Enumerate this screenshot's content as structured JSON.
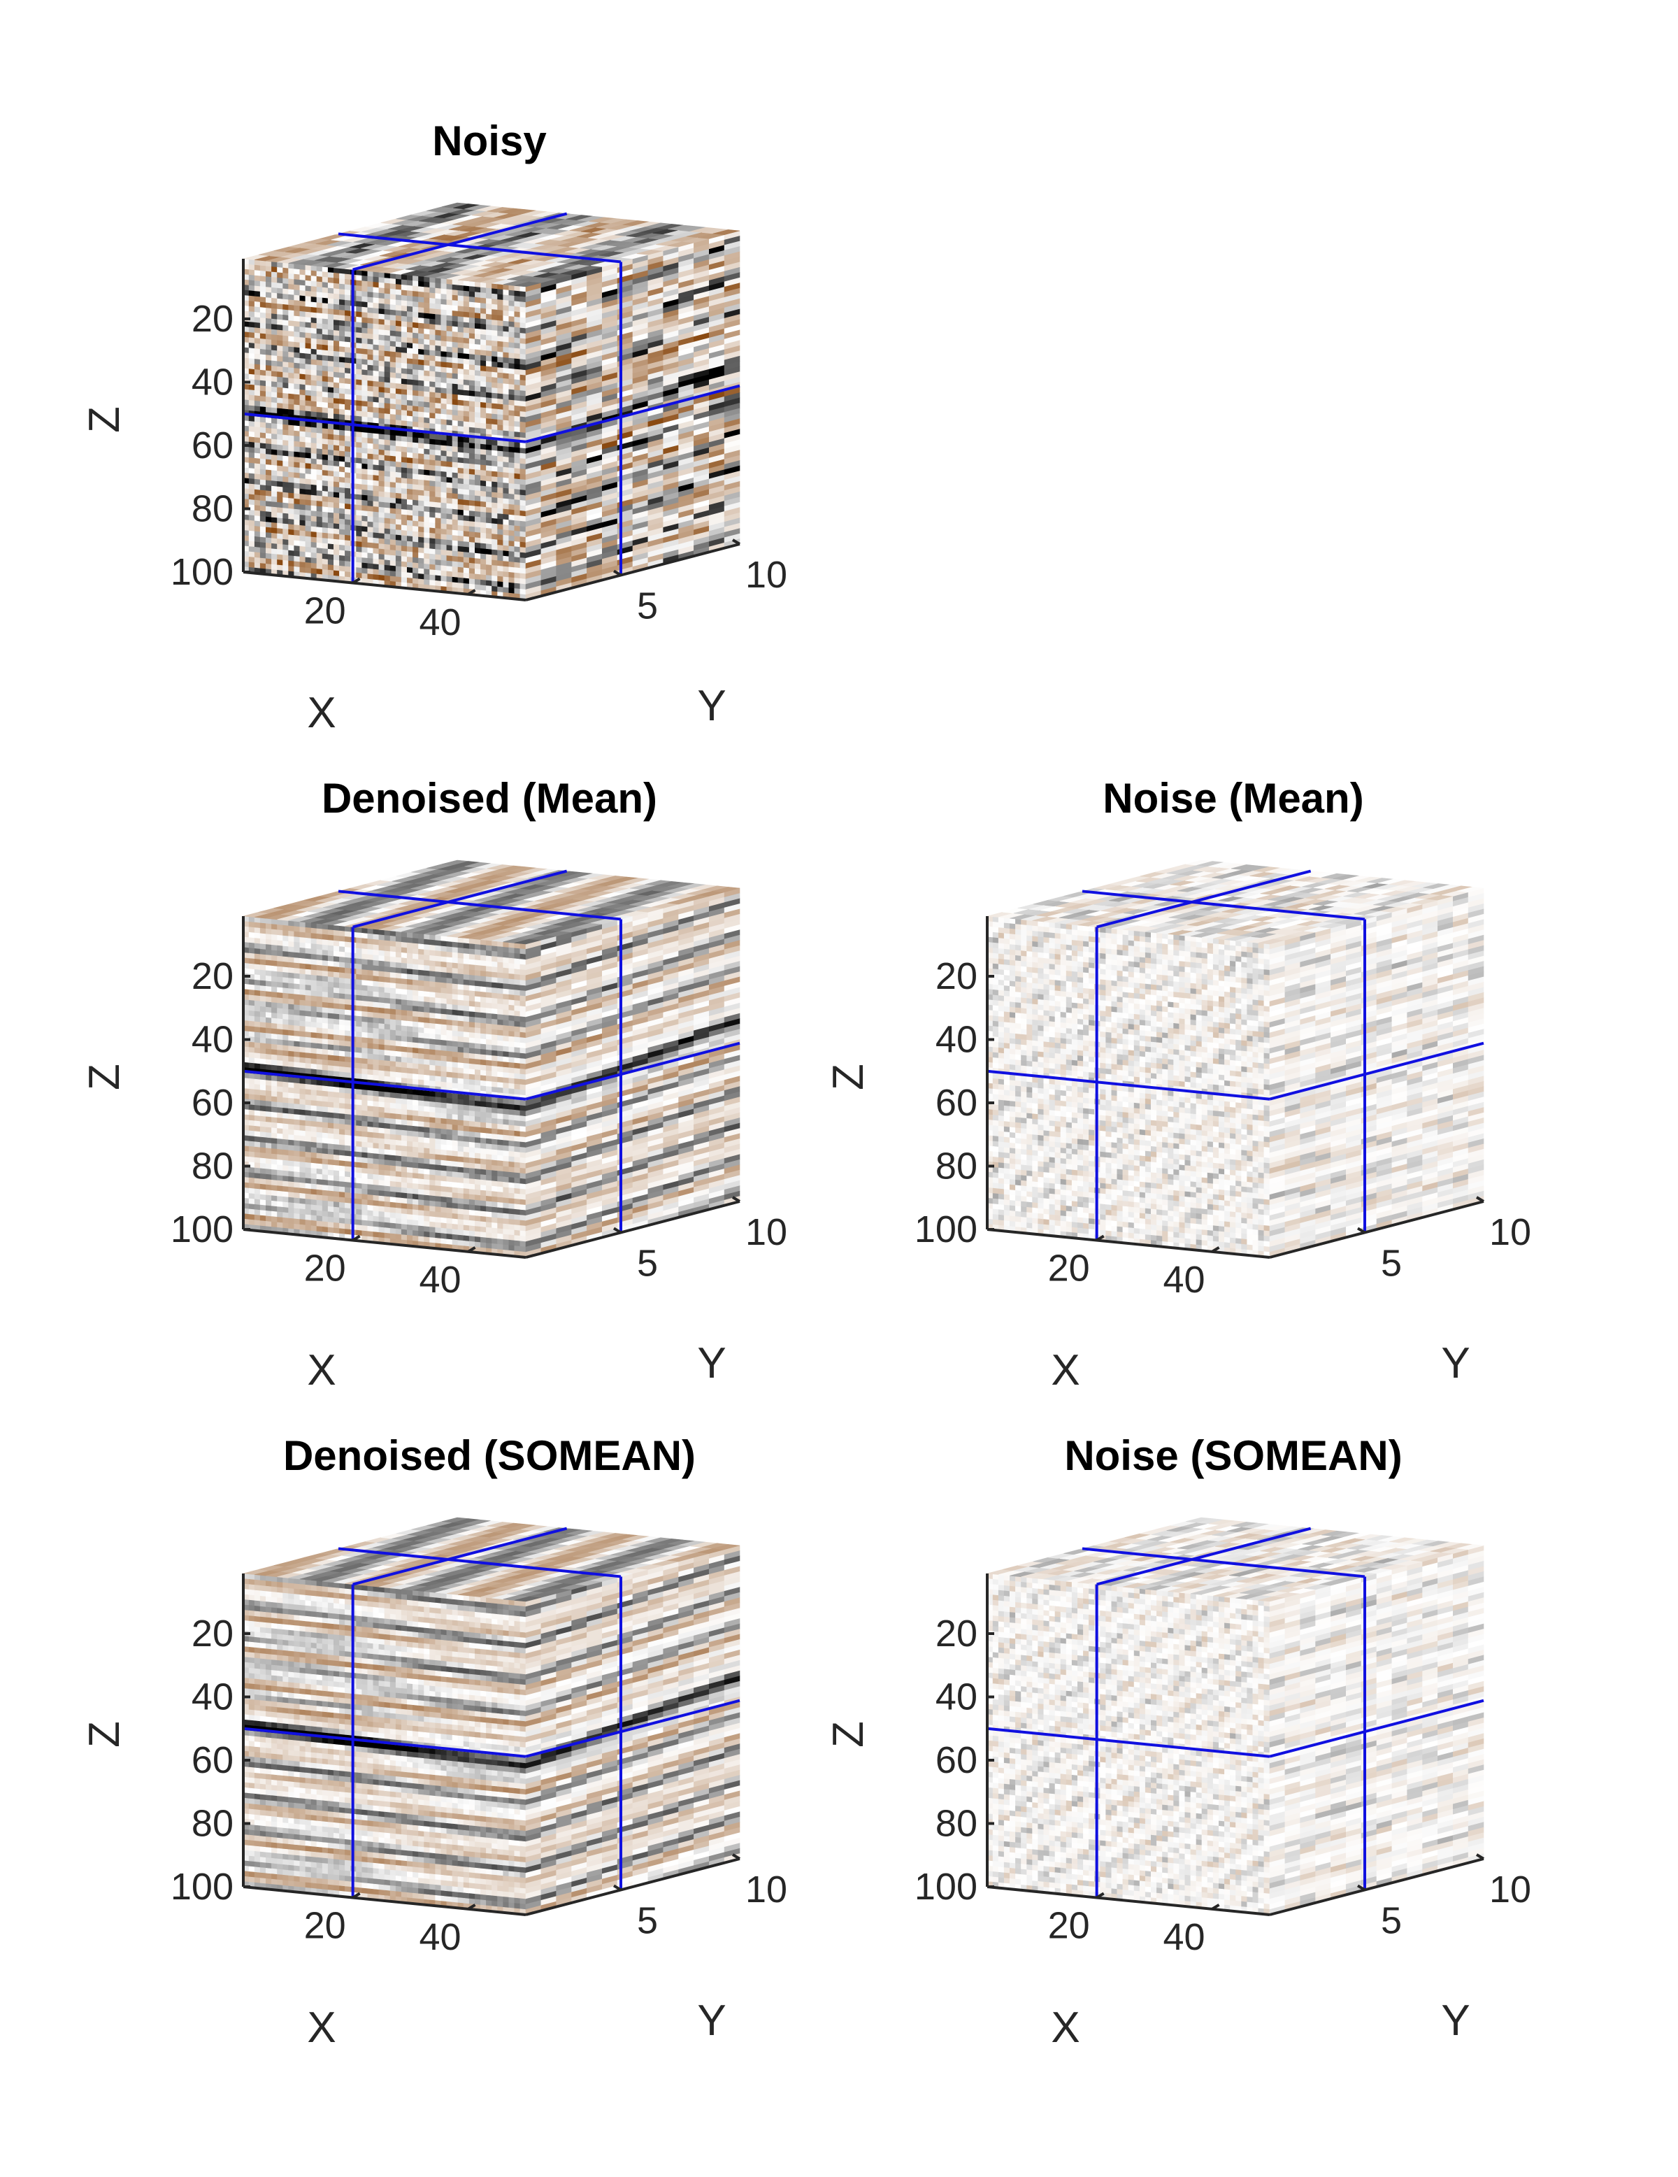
{
  "chart_data": [
    {
      "type": "cube-volume",
      "title": "Noisy",
      "xlabel": "X",
      "ylabel": "Y",
      "zlabel": "Z",
      "xlim": [
        1,
        50
      ],
      "ylim": [
        1,
        10
      ],
      "zlim": [
        1,
        100
      ],
      "xticks": [
        20,
        40
      ],
      "yticks": [
        5,
        10
      ],
      "zticks": [
        20,
        40,
        60,
        80,
        100
      ],
      "zdir": "reverse",
      "slices": {
        "x": 20,
        "y": 5,
        "z": 50
      },
      "slice_line_color": "#1010e0",
      "kind": "signal",
      "noise_level": 0.55,
      "event_depth": 45
    },
    {
      "type": "cube-volume",
      "title": "Denoised (Mean)",
      "xlabel": "X",
      "ylabel": "Y",
      "zlabel": "Z",
      "xlim": [
        1,
        50
      ],
      "ylim": [
        1,
        10
      ],
      "zlim": [
        1,
        100
      ],
      "xticks": [
        20,
        40
      ],
      "yticks": [
        5,
        10
      ],
      "zticks": [
        20,
        40,
        60,
        80,
        100
      ],
      "zdir": "reverse",
      "slices": {
        "x": 20,
        "y": 5,
        "z": 50
      },
      "slice_line_color": "#1010e0",
      "kind": "signal",
      "noise_level": 0.12,
      "event_depth": 45
    },
    {
      "type": "cube-volume",
      "title": "Noise (Mean)",
      "xlabel": "X",
      "ylabel": "Y",
      "zlabel": "Z",
      "xlim": [
        1,
        50
      ],
      "ylim": [
        1,
        10
      ],
      "zlim": [
        1,
        100
      ],
      "xticks": [
        20,
        40
      ],
      "yticks": [
        5,
        10
      ],
      "zticks": [
        20,
        40,
        60,
        80,
        100
      ],
      "zdir": "reverse",
      "slices": {
        "x": 20,
        "y": 5,
        "z": 50
      },
      "slice_line_color": "#1010e0",
      "kind": "noise",
      "noise_level": 0.35,
      "event_depth": 45
    },
    {
      "type": "cube-volume",
      "title": "Denoised (SOMEAN)",
      "xlabel": "X",
      "ylabel": "Y",
      "zlabel": "Z",
      "xlim": [
        1,
        50
      ],
      "ylim": [
        1,
        10
      ],
      "zlim": [
        1,
        100
      ],
      "xticks": [
        20,
        40
      ],
      "yticks": [
        5,
        10
      ],
      "zticks": [
        20,
        40,
        60,
        80,
        100
      ],
      "zdir": "reverse",
      "slices": {
        "x": 20,
        "y": 5,
        "z": 50
      },
      "slice_line_color": "#1010e0",
      "kind": "signal",
      "noise_level": 0.08,
      "event_depth": 45
    },
    {
      "type": "cube-volume",
      "title": "Noise (SOMEAN)",
      "xlabel": "X",
      "ylabel": "Y",
      "zlabel": "Z",
      "xlim": [
        1,
        50
      ],
      "ylim": [
        1,
        10
      ],
      "zlim": [
        1,
        100
      ],
      "xticks": [
        20,
        40
      ],
      "yticks": [
        5,
        10
      ],
      "zticks": [
        20,
        40,
        60,
        80,
        100
      ],
      "zdir": "reverse",
      "slices": {
        "x": 20,
        "y": 5,
        "z": 50
      },
      "slice_line_color": "#1010e0",
      "kind": "noise",
      "noise_level": 0.32,
      "event_depth": 45
    }
  ],
  "colormap": {
    "name": "seismic-brown-gray",
    "negative": "#000000",
    "zero": "#ffffff",
    "positive": "#8a4a12"
  }
}
